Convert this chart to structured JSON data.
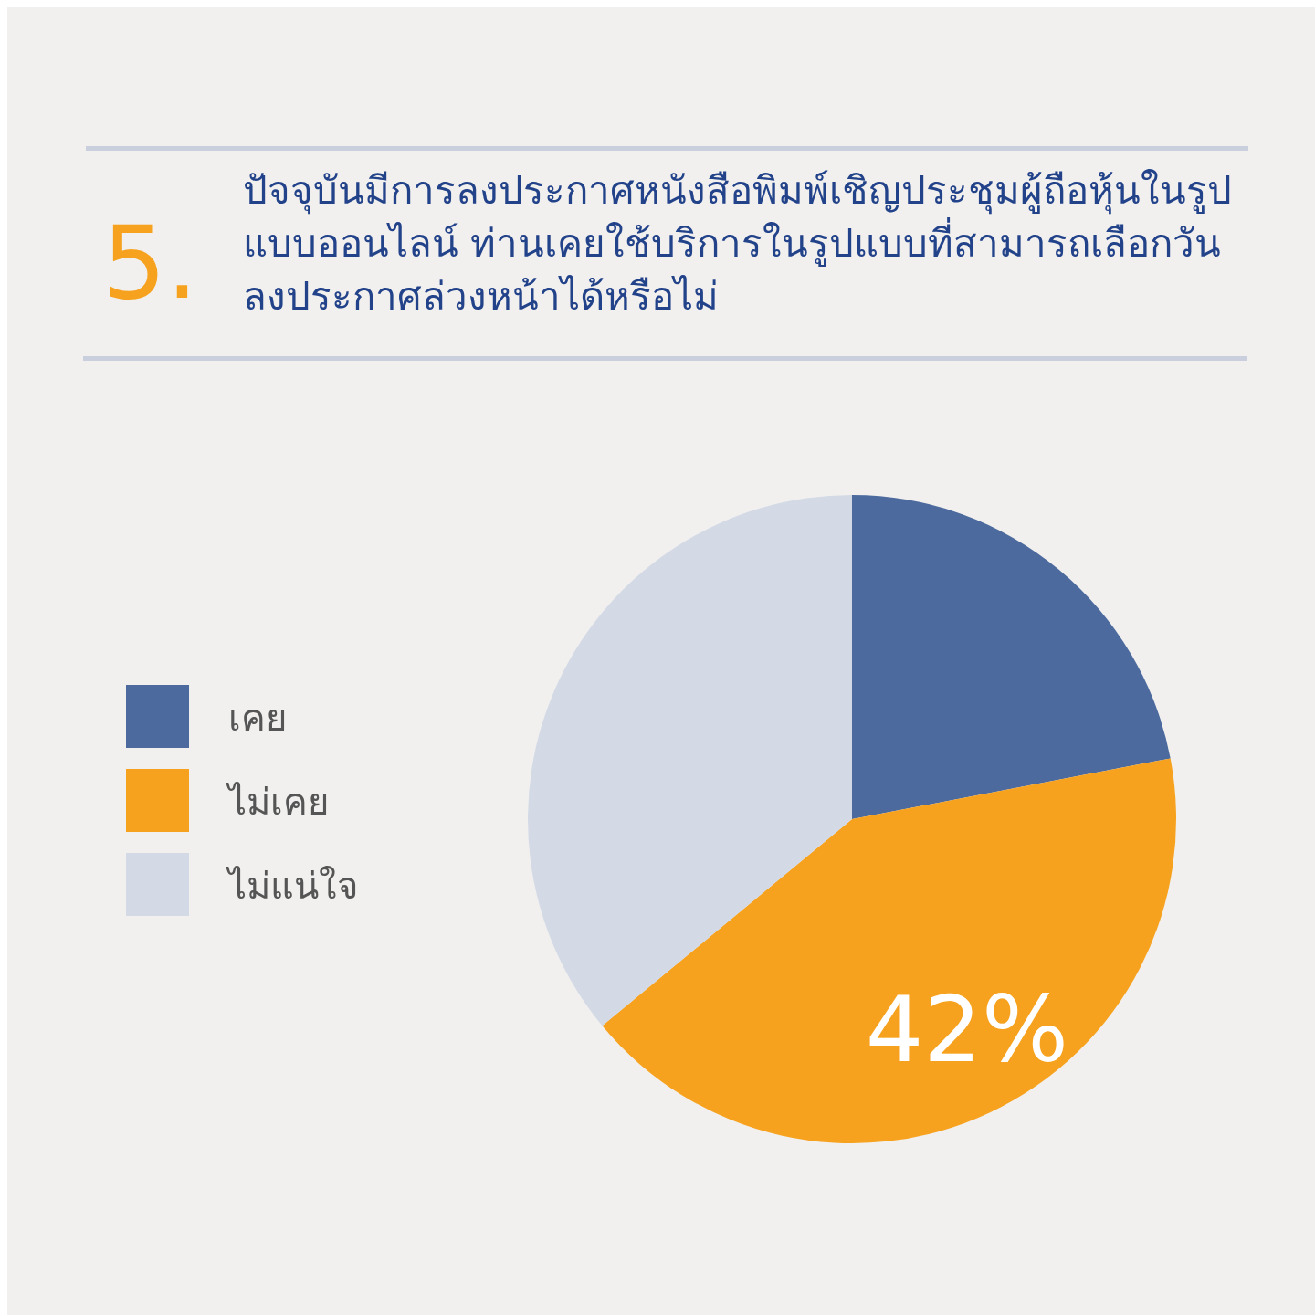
{
  "chart_data": {
    "type": "pie",
    "title": "ปัจจุบันมีการลงประกาศหนังสือพิมพ์เชิญประชุมผู้ถือหุ้นในรูปแบบออนไลน์ ท่านเคยใช้บริการในรูปแบบที่สามารถเลือกวันลงประกาศล่วงหน้าได้หรือไม่",
    "annotations": [
      "5."
    ],
    "categories": [
      "เคย",
      "ไม่เคย",
      "ไม่แน่ใจ"
    ],
    "values": [
      22,
      42,
      36
    ],
    "colors": [
      "#4c6a9e",
      "#f7a21e",
      "#d3dae6"
    ],
    "value_labels": [
      null,
      "42%",
      null
    ],
    "legend": "left"
  }
}
